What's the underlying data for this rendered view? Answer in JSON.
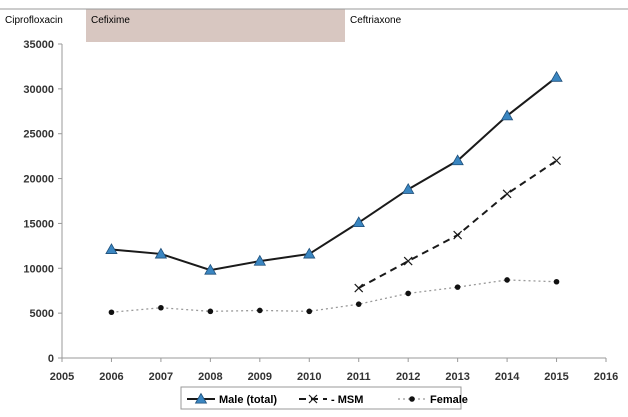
{
  "chart_data": {
    "type": "line",
    "title": "",
    "xlabel": "",
    "ylabel": "",
    "x": [
      2006,
      2007,
      2008,
      2009,
      2010,
      2011,
      2012,
      2013,
      2014,
      2015
    ],
    "x_ticks": [
      "2005",
      "2006",
      "2007",
      "2008",
      "2009",
      "2010",
      "2011",
      "2012",
      "2013",
      "2014",
      "2015",
      "2016"
    ],
    "xlim": [
      2005,
      2016
    ],
    "y_ticks": [
      "0",
      "5000",
      "10000",
      "15000",
      "20000",
      "25000",
      "30000",
      "35000"
    ],
    "ylim": [
      0,
      35000
    ],
    "grid": false,
    "legend_position": "bottom",
    "treatment_periods": [
      {
        "label": "Ciprofloxacin",
        "start": 2005,
        "end": 2005.3,
        "color": "#ffffff"
      },
      {
        "label": "Cefixime",
        "start": 2005.3,
        "end": 2007.9,
        "color": "#d8c7c1"
      },
      {
        "label": "Ceftriaxone",
        "start": 2007.9,
        "end": 2010.4,
        "color": "#ffffff"
      }
    ],
    "series": [
      {
        "name": "Male (total)",
        "style": "solid-triangle",
        "color": "#1a1a1a",
        "marker_color": "#3a86c1",
        "values": [
          12100,
          11600,
          9800,
          10800,
          11600,
          15100,
          18800,
          22000,
          27000,
          31300
        ]
      },
      {
        "name": "- MSM",
        "style": "dashed-x",
        "color": "#1a1a1a",
        "marker_color": "#1a1a1a",
        "values": [
          null,
          null,
          null,
          null,
          null,
          7800,
          10800,
          13700,
          18300,
          22000
        ]
      },
      {
        "name": "Female",
        "style": "dotted-circle",
        "color": "#999999",
        "marker_color": "#111111",
        "values": [
          5100,
          5600,
          5200,
          5300,
          5200,
          6000,
          7200,
          7900,
          8700,
          8500
        ]
      }
    ]
  }
}
